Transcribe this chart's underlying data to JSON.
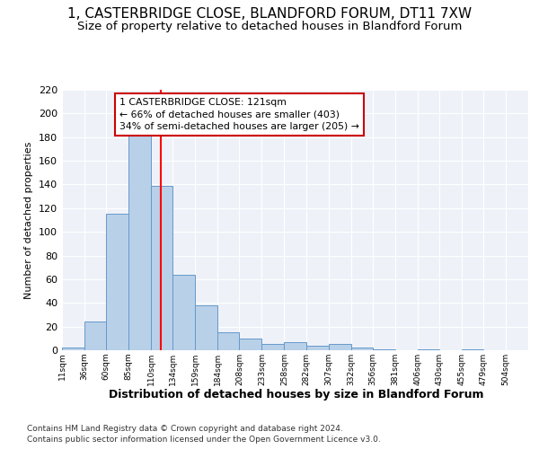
{
  "title": "1, CASTERBRIDGE CLOSE, BLANDFORD FORUM, DT11 7XW",
  "subtitle": "Size of property relative to detached houses in Blandford Forum",
  "xlabel": "Distribution of detached houses by size in Blandford Forum",
  "ylabel": "Number of detached properties",
  "footnote1": "Contains HM Land Registry data © Crown copyright and database right 2024.",
  "footnote2": "Contains public sector information licensed under the Open Government Licence v3.0.",
  "bin_labels": [
    "11sqm",
    "36sqm",
    "60sqm",
    "85sqm",
    "110sqm",
    "134sqm",
    "159sqm",
    "184sqm",
    "208sqm",
    "233sqm",
    "258sqm",
    "282sqm",
    "307sqm",
    "332sqm",
    "356sqm",
    "381sqm",
    "406sqm",
    "430sqm",
    "455sqm",
    "479sqm",
    "504sqm"
  ],
  "bar_values": [
    2,
    24,
    115,
    183,
    139,
    64,
    38,
    15,
    10,
    5,
    7,
    4,
    5,
    2,
    1,
    0,
    1,
    0,
    1,
    0,
    0
  ],
  "bar_color": "#b8d0e8",
  "bar_edge_color": "#6699cc",
  "property_line_x": 121,
  "pct_smaller": 66,
  "n_smaller": 403,
  "pct_larger_semi": 34,
  "n_larger_semi": 205,
  "annotation_box_color": "#cc0000",
  "ylim": [
    0,
    220
  ],
  "yticks": [
    0,
    20,
    40,
    60,
    80,
    100,
    120,
    140,
    160,
    180,
    200,
    220
  ],
  "bin_starts": [
    11,
    36,
    60,
    85,
    110,
    134,
    159,
    184,
    208,
    233,
    258,
    282,
    307,
    332,
    356,
    381,
    406,
    430,
    455,
    479,
    504
  ],
  "bin_width_vals": [
    25,
    24,
    25,
    25,
    24,
    25,
    25,
    24,
    25,
    25,
    24,
    25,
    25,
    24,
    25,
    25,
    24,
    25,
    24,
    25,
    25
  ],
  "background_color": "#eef2f8",
  "title_fontsize": 11,
  "subtitle_fontsize": 9.5,
  "grid_color": "#ffffff"
}
